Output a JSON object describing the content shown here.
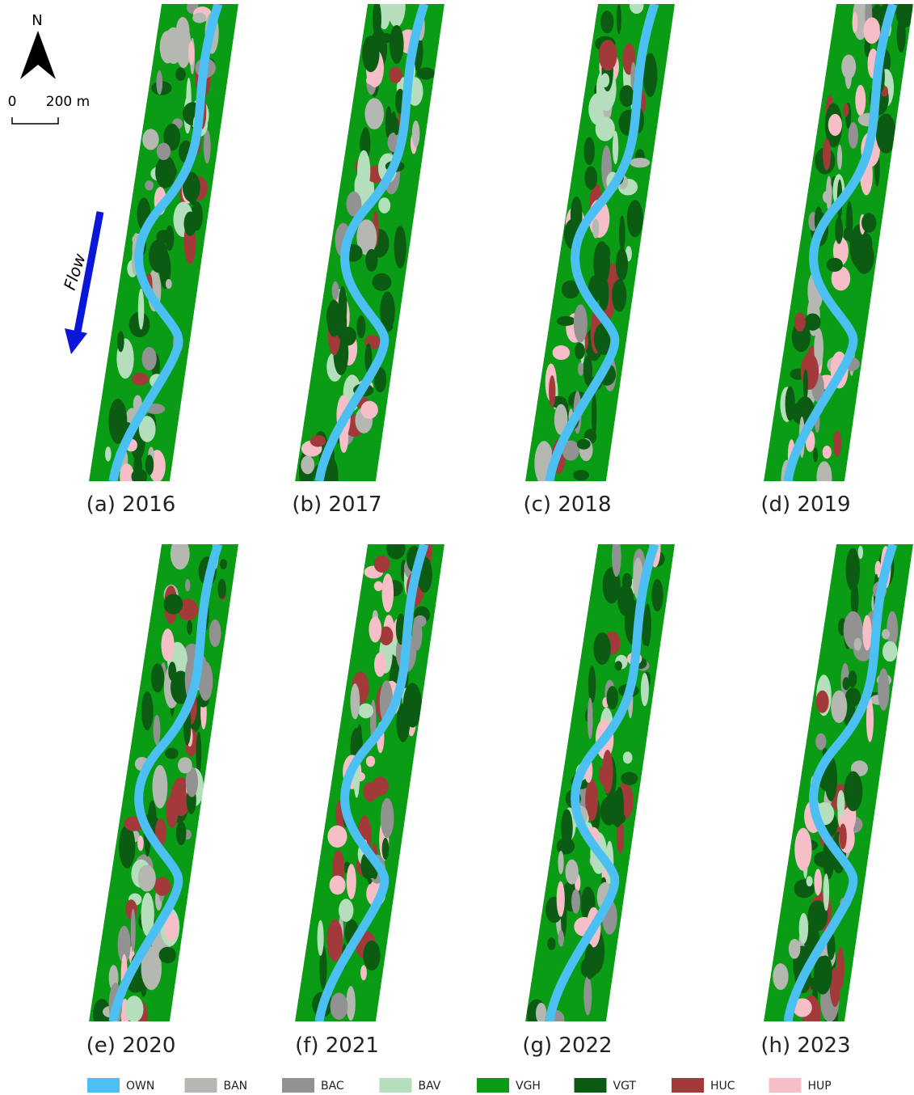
{
  "north_label": "N",
  "scale_bar": {
    "start": "0",
    "end": "200 m"
  },
  "flow_label": "Flow",
  "panels": [
    {
      "label": "(a) 2016"
    },
    {
      "label": "(b) 2017"
    },
    {
      "label": "(c) 2018"
    },
    {
      "label": "(d) 2019"
    },
    {
      "label": "(e) 2020"
    },
    {
      "label": "(f) 2021"
    },
    {
      "label": "(g) 2022"
    },
    {
      "label": "(h) 2023"
    }
  ],
  "legend": [
    {
      "code": "OWN",
      "color": "#4cc0f2"
    },
    {
      "code": "BAN",
      "color": "#b4b8b0"
    },
    {
      "code": "BAC",
      "color": "#929292"
    },
    {
      "code": "BAV",
      "color": "#b5dfbc"
    },
    {
      "code": "VGH",
      "color": "#0a9c14"
    },
    {
      "code": "VGT",
      "color": "#0b5c12"
    },
    {
      "code": "HUC",
      "color": "#a33a3a"
    },
    {
      "code": "HUP",
      "color": "#f6bfc8"
    }
  ]
}
